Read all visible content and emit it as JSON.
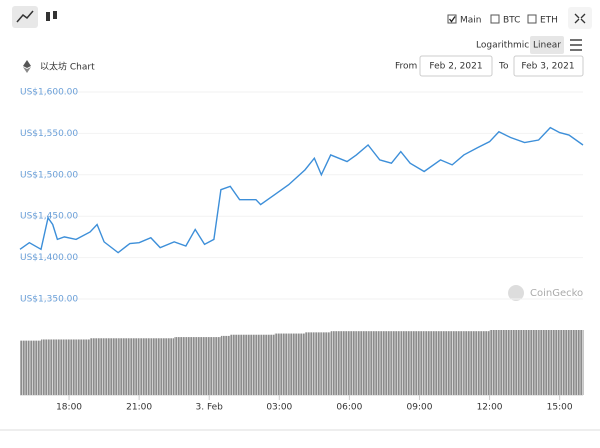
{
  "ui": {
    "main": "Main",
    "btc": "BTC",
    "eth": "ETH",
    "logarithmic": "Logarithmic",
    "linear": "Linear",
    "from": "From",
    "to": "To",
    "from_date": "Feb 2, 2021",
    "to_date": "Feb 3, 2021",
    "watermark": "CoinGecko"
  },
  "chart_data": {
    "type": "line",
    "title": "以太坊 Chart",
    "x": [
      15.9,
      16.3,
      16.8,
      17.1,
      17.3,
      17.5,
      17.8,
      18.3,
      18.9,
      19.2,
      19.5,
      20.1,
      20.6,
      21.0,
      21.5,
      21.9,
      22.5,
      23.0,
      23.4,
      23.8,
      24.2,
      24.5,
      24.9,
      25.3,
      26.0,
      26.2,
      26.8,
      27.4,
      28.1,
      28.5,
      28.8,
      29.2,
      29.9,
      30.3,
      30.8,
      31.3,
      31.8,
      32.2,
      32.6,
      33.2,
      33.9,
      34.4,
      34.9,
      35.5,
      36.0,
      36.4,
      36.9,
      37.5,
      38.1,
      38.6,
      39.0,
      39.4,
      40.0
    ],
    "series": [
      {
        "name": "Main",
        "color": "#3d8fd9",
        "values": [
          1410,
          1418,
          1410,
          1448,
          1440,
          1422,
          1425,
          1422,
          1431,
          1440,
          1419,
          1406,
          1417,
          1418,
          1424,
          1412,
          1419,
          1414,
          1434,
          1416,
          1422,
          1482,
          1486,
          1470,
          1470,
          1464,
          1476,
          1488,
          1506,
          1520,
          1500,
          1524,
          1516,
          1524,
          1536,
          1518,
          1514,
          1528,
          1514,
          1504,
          1518,
          1512,
          1524,
          1533,
          1540,
          1552,
          1545,
          1539,
          1542,
          1557,
          1551,
          1548,
          1536
        ]
      }
    ],
    "volume": {
      "color": "#8c8c8c",
      "values": [
        46,
        46,
        47,
        47,
        47,
        47,
        47,
        47,
        48,
        48,
        48,
        48,
        48,
        48,
        48,
        48,
        49,
        49,
        49,
        49,
        49,
        50,
        51,
        51,
        51,
        51,
        52,
        52,
        53,
        53,
        53,
        54,
        54,
        54,
        54,
        54,
        54,
        54,
        54,
        54,
        54,
        54,
        54,
        54,
        55,
        55,
        55,
        55,
        55,
        55,
        55,
        55,
        55
      ]
    },
    "xlim": [
      15.9,
      40
    ],
    "xticks": [
      {
        "value": 18,
        "label": "18:00"
      },
      {
        "value": 21,
        "label": "21:00"
      },
      {
        "value": 24,
        "label": "3. Feb"
      },
      {
        "value": 27,
        "label": "03:00"
      },
      {
        "value": 30,
        "label": "06:00"
      },
      {
        "value": 33,
        "label": "09:00"
      },
      {
        "value": 36,
        "label": "12:00"
      },
      {
        "value": 39,
        "label": "15:00"
      }
    ],
    "ylim": [
      1350,
      1600
    ],
    "yticks": [
      {
        "value": 1350,
        "label": "US$1,350.00"
      },
      {
        "value": 1400,
        "label": "US$1,400.00"
      },
      {
        "value": 1450,
        "label": "US$1,450.00"
      },
      {
        "value": 1500,
        "label": "US$1,500.00"
      },
      {
        "value": 1550,
        "label": "US$1,550.00"
      },
      {
        "value": 1600,
        "label": "US$1,600.00"
      }
    ],
    "grid": true
  }
}
